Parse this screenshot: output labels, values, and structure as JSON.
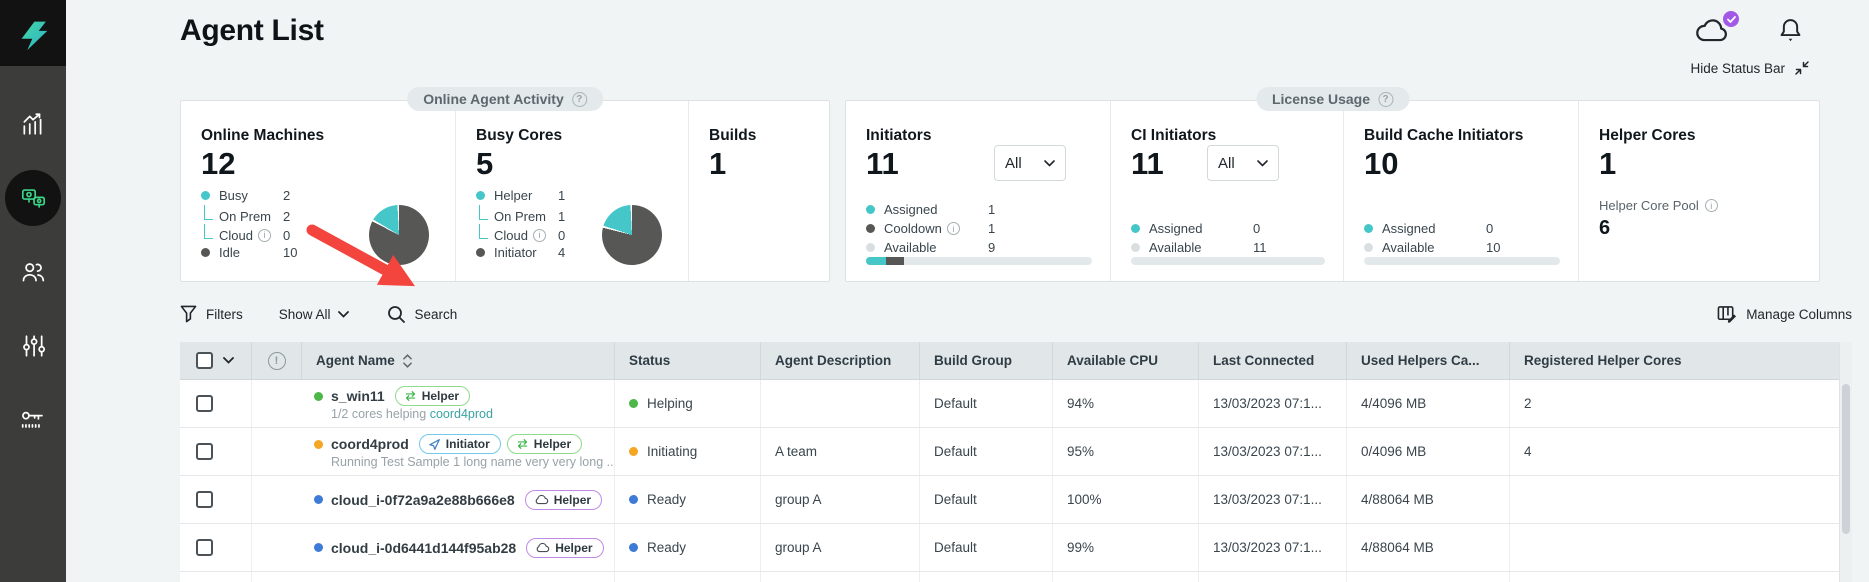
{
  "colors": {
    "accent_teal": "#45c6c9",
    "dark_slice": "#575756",
    "green_status": "#4db748",
    "orange_status": "#f5a623",
    "blue_status": "#3e7bd6",
    "purple_badge": "#a259e6",
    "red_arrow": "#f3443e",
    "sidebar_bg": "#3c3c3b",
    "active_green": "#3ad388"
  },
  "header": {
    "title": "Agent List",
    "hide_status_bar": "Hide Status Bar"
  },
  "activity_panel": {
    "tab": "Online Agent Activity",
    "online_machines": {
      "title": "Online Machines",
      "value": "12",
      "legend": [
        {
          "label": "Busy",
          "value": "2"
        },
        {
          "label": "On Prem",
          "value": "2"
        },
        {
          "label": "Cloud",
          "value": "0"
        },
        {
          "label": "Idle",
          "value": "10"
        }
      ]
    },
    "busy_cores": {
      "title": "Busy Cores",
      "value": "5",
      "legend": [
        {
          "label": "Helper",
          "value": "1"
        },
        {
          "label": "On Prem",
          "value": "1"
        },
        {
          "label": "Cloud",
          "value": "0"
        },
        {
          "label": "Initiator",
          "value": "4"
        }
      ]
    },
    "builds": {
      "title": "Builds",
      "value": "1"
    }
  },
  "license_panel": {
    "tab": "License Usage",
    "initiators": {
      "title": "Initiators",
      "value": "11",
      "dropdown": "All",
      "legend": [
        {
          "label": "Assigned",
          "value": "1"
        },
        {
          "label": "Cooldown",
          "value": "1"
        },
        {
          "label": "Available",
          "value": "9"
        }
      ]
    },
    "ci_initiators": {
      "title": "CI Initiators",
      "value": "11",
      "dropdown": "All",
      "legend": [
        {
          "label": "Assigned",
          "value": "0"
        },
        {
          "label": "Available",
          "value": "11"
        }
      ]
    },
    "build_cache": {
      "title": "Build Cache Initiators",
      "value": "10",
      "legend": [
        {
          "label": "Assigned",
          "value": "0"
        },
        {
          "label": "Available",
          "value": "10"
        }
      ]
    },
    "helper_cores": {
      "title": "Helper Cores",
      "value": "1",
      "pool_label": "Helper Core Pool",
      "pool_value": "6"
    }
  },
  "toolbar": {
    "filters": "Filters",
    "show_all": "Show All",
    "search": "Search",
    "manage_columns": "Manage Columns"
  },
  "table": {
    "columns": [
      "Agent Name",
      "Status",
      "Agent Description",
      "Build Group",
      "Available CPU",
      "Last Connected",
      "Used Helpers Ca...",
      "Registered Helper Cores"
    ],
    "rows": [
      {
        "name": "s_win11",
        "dot_color": "#4db748",
        "badges": [
          {
            "kind": "helper",
            "label": "Helper"
          }
        ],
        "sub_parts": [
          {
            "text": "1/2 cores helping "
          },
          {
            "text": "coord4prod",
            "accent": true
          }
        ],
        "status": {
          "label": "Helping",
          "color": "#4db748"
        },
        "description": "",
        "build_group": "Default",
        "available_cpu": "94%",
        "last_connected": "13/03/2023 07:1...",
        "used_helpers": "4/4096 MB",
        "registered_helper_cores": "2"
      },
      {
        "name": "coord4prod",
        "dot_color": "#f5a623",
        "badges": [
          {
            "kind": "initiator",
            "label": "Initiator"
          },
          {
            "kind": "helper",
            "label": "Helper"
          }
        ],
        "sub_parts": [
          {
            "text": "Running Test Sample 1 long name very very long ..."
          }
        ],
        "status": {
          "label": "Initiating",
          "color": "#f5a623"
        },
        "description": "A team",
        "build_group": "Default",
        "available_cpu": "95%",
        "last_connected": "13/03/2023 07:1...",
        "used_helpers": "0/4096 MB",
        "registered_helper_cores": "4"
      },
      {
        "name": "cloud_i-0f72a9a2e88b666e8",
        "dot_color": "#3e7bd6",
        "badges": [
          {
            "kind": "cloud-helper",
            "label": "Helper"
          }
        ],
        "sub_parts": [],
        "status": {
          "label": "Ready",
          "color": "#3e7bd6"
        },
        "description": "group A",
        "build_group": "Default",
        "available_cpu": "100%",
        "last_connected": "13/03/2023 07:1...",
        "used_helpers": "4/88064 MB",
        "registered_helper_cores": ""
      },
      {
        "name": "cloud_i-0d6441d144f95ab28",
        "dot_color": "#3e7bd6",
        "badges": [
          {
            "kind": "cloud-helper",
            "label": "Helper"
          }
        ],
        "sub_parts": [],
        "status": {
          "label": "Ready",
          "color": "#3e7bd6"
        },
        "description": "group A",
        "build_group": "Default",
        "available_cpu": "99%",
        "last_connected": "13/03/2023 07:1...",
        "used_helpers": "4/88064 MB",
        "registered_helper_cores": ""
      }
    ]
  }
}
